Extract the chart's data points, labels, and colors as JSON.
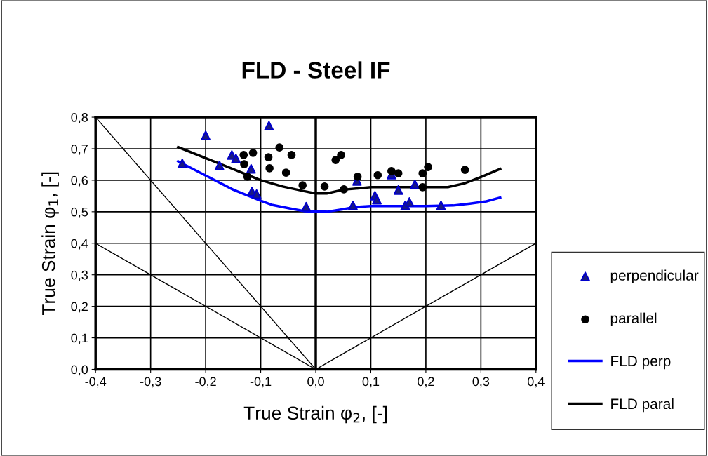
{
  "chart_data": {
    "type": "scatter",
    "title": "FLD - Steel IF",
    "xlabel": "True Strain φ$_{2}$, [-]",
    "ylabel": "True Strain φ$_{1}$, [-]",
    "xlim": [
      -0.4,
      0.4
    ],
    "ylim": [
      0.0,
      0.8
    ],
    "xticks": [
      {
        "value": -0.4,
        "label": "-0,4"
      },
      {
        "value": -0.3,
        "label": "-0,3"
      },
      {
        "value": -0.2,
        "label": "-0,2"
      },
      {
        "value": -0.1,
        "label": "-0,1"
      },
      {
        "value": 0.0,
        "label": "0,0"
      },
      {
        "value": 0.1,
        "label": "0,1"
      },
      {
        "value": 0.2,
        "label": "0,2"
      },
      {
        "value": 0.3,
        "label": "0,3"
      },
      {
        "value": 0.4,
        "label": "0,4"
      }
    ],
    "yticks": [
      {
        "value": 0.0,
        "label": "0,0"
      },
      {
        "value": 0.1,
        "label": "0,1"
      },
      {
        "value": 0.2,
        "label": "0,2"
      },
      {
        "value": 0.3,
        "label": "0,3"
      },
      {
        "value": 0.4,
        "label": "0,4"
      },
      {
        "value": 0.5,
        "label": "0,5"
      },
      {
        "value": 0.6,
        "label": "0,6"
      },
      {
        "value": 0.7,
        "label": "0,7"
      },
      {
        "value": 0.8,
        "label": "0,8"
      }
    ],
    "grid": true,
    "legend": "right",
    "ref_lines": [
      {
        "axis": "x",
        "value": 0.0,
        "color": "#000000"
      }
    ],
    "series": [
      {
        "name": "perpendicular",
        "marker": "triangle",
        "color": "#0000cc",
        "x": [
          -0.2425,
          -0.2,
          -0.175,
          -0.1525,
          -0.145,
          -0.13,
          -0.1175,
          -0.116,
          -0.1075,
          -0.085,
          -0.0175,
          0.0675,
          0.075,
          0.1075,
          0.111,
          0.1375,
          0.15,
          0.1625,
          0.17,
          0.18,
          0.2275
        ],
        "values": [
          0.653,
          0.742,
          0.647,
          0.68,
          0.669,
          null,
          0.636,
          0.564,
          0.556,
          0.773,
          0.516,
          0.52,
          0.598,
          0.551,
          0.538,
          0.618,
          0.569,
          0.52,
          0.531,
          0.587,
          0.52
        ]
      },
      {
        "name": "parallel",
        "marker": "circle",
        "color": "#000000",
        "x": [
          -0.131,
          -0.114,
          -0.13,
          -0.124,
          -0.086,
          -0.066,
          -0.044,
          -0.084,
          -0.054,
          -0.024,
          0.016,
          0.036,
          0.046,
          0.051,
          0.076,
          0.1125,
          0.1375,
          0.15,
          0.194,
          0.204,
          0.194,
          0.271
        ],
        "values": [
          0.68,
          0.687,
          0.651,
          0.611,
          0.673,
          0.704,
          0.68,
          0.638,
          0.624,
          0.584,
          0.58,
          0.664,
          0.68,
          0.571,
          0.611,
          0.616,
          0.629,
          0.622,
          0.622,
          0.642,
          0.578,
          0.633
        ]
      },
      {
        "name": "FLD perp",
        "type": "line",
        "marker": "none",
        "color": "#0000ff",
        "x": [
          -0.25,
          -0.2,
          -0.15,
          -0.1,
          -0.08,
          -0.04,
          -0.02,
          0.0,
          0.02,
          0.05,
          0.07,
          0.1,
          0.2,
          0.25,
          0.28,
          0.31,
          0.335
        ],
        "values": [
          0.66,
          0.615,
          0.57,
          0.535,
          0.522,
          0.508,
          0.502,
          0.5,
          0.5,
          0.508,
          0.515,
          0.518,
          0.518,
          0.52,
          0.526,
          0.533,
          0.545
        ]
      },
      {
        "name": "FLD paral",
        "type": "line",
        "marker": "none",
        "color": "#000000",
        "x": [
          -0.25,
          -0.2,
          -0.15,
          -0.1,
          -0.06,
          -0.02,
          0.0,
          0.02,
          0.05,
          0.1,
          0.2,
          0.24,
          0.27,
          0.3,
          0.335
        ],
        "values": [
          0.705,
          0.67,
          0.635,
          0.6,
          0.58,
          0.565,
          0.558,
          0.558,
          0.57,
          0.578,
          0.578,
          0.578,
          0.59,
          0.61,
          0.636
        ]
      },
      {
        "type": "line",
        "marker": "none",
        "color": "#000000",
        "x": [
          -0.4,
          0.0
        ],
        "values": [
          0.8,
          0.0
        ]
      },
      {
        "type": "line",
        "marker": "none",
        "color": "#000000",
        "x": [
          -0.4,
          0.0,
          0.4
        ],
        "values": [
          0.4,
          0.0,
          0.4
        ]
      }
    ]
  }
}
